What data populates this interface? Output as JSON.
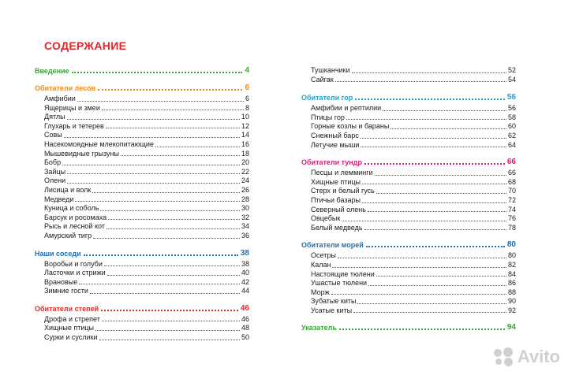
{
  "title": "СОДЕРЖАНИЕ",
  "colors": {
    "title": "#e0272c",
    "green": "#3aa635",
    "orange": "#f18a12",
    "blue": "#1a6fb5",
    "red": "#e52a24",
    "teal": "#1fa3c8",
    "magenta": "#d61f77"
  },
  "left": [
    {
      "label": "Введение",
      "page": "4",
      "color": "#3aa635",
      "items": []
    },
    {
      "label": "Обитатели лесов",
      "page": "6",
      "color": "#f18a12",
      "items": [
        {
          "label": "Амфибии",
          "page": "6"
        },
        {
          "label": "Ящерицы и змеи",
          "page": "8"
        },
        {
          "label": "Дятлы",
          "page": "10"
        },
        {
          "label": "Глухарь и тетерев",
          "page": "12"
        },
        {
          "label": "Совы",
          "page": "14"
        },
        {
          "label": "Насекомоядные млекопитающие",
          "page": "16"
        },
        {
          "label": "Мышевидные грызуны",
          "page": "18"
        },
        {
          "label": "Бобр",
          "page": "20"
        },
        {
          "label": "Зайцы",
          "page": "22"
        },
        {
          "label": "Олени",
          "page": "24"
        },
        {
          "label": "Лисица и волк",
          "page": "26"
        },
        {
          "label": "Медведи",
          "page": "28"
        },
        {
          "label": "Куница и соболь",
          "page": "30"
        },
        {
          "label": "Барсук и росомаха",
          "page": "32"
        },
        {
          "label": "Рысь и лесной кот",
          "page": "34"
        },
        {
          "label": "Амурский тигр",
          "page": "36"
        }
      ]
    },
    {
      "label": "Наши соседи",
      "page": "38",
      "color": "#1a6fb5",
      "items": [
        {
          "label": "Воробьи и голуби",
          "page": "38"
        },
        {
          "label": "Ласточки и стрижи",
          "page": "40"
        },
        {
          "label": "Врановые",
          "page": "42"
        },
        {
          "label": "Зимние гости",
          "page": "44"
        }
      ]
    },
    {
      "label": "Обитатели степей",
      "page": "46",
      "color": "#e52a24",
      "items": [
        {
          "label": "Дрофа и стрепет",
          "page": "46"
        },
        {
          "label": "Хищные птицы",
          "page": "48"
        },
        {
          "label": "Сурки и суслики",
          "page": "50"
        }
      ]
    }
  ],
  "right_continuation": [
    {
      "label": "Тушканчики",
      "page": "52"
    },
    {
      "label": "Сайгак",
      "page": "54"
    }
  ],
  "right": [
    {
      "label": "Обитатели гор",
      "page": "56",
      "color": "#1fa3c8",
      "items": [
        {
          "label": "Амфибии и рептилии",
          "page": "56"
        },
        {
          "label": "Птицы гор",
          "page": "58"
        },
        {
          "label": "Горные козлы и бараны",
          "page": "60"
        },
        {
          "label": "Снежный барс",
          "page": "62"
        },
        {
          "label": "Летучие мыши",
          "page": "64"
        }
      ]
    },
    {
      "label": "Обитатели тундр",
      "page": "66",
      "color": "#d61f77",
      "items": [
        {
          "label": "Песцы и лемминги",
          "page": "66"
        },
        {
          "label": "Хищные птицы",
          "page": "68"
        },
        {
          "label": "Стерх и белый гусь",
          "page": "70"
        },
        {
          "label": "Птичьи базары",
          "page": "72"
        },
        {
          "label": "Северный олень",
          "page": "74"
        },
        {
          "label": "Овцебык",
          "page": "76"
        },
        {
          "label": "Белый медведь",
          "page": "78"
        }
      ]
    },
    {
      "label": "Обитатели морей",
      "page": "80",
      "color": "#1a6fb5",
      "items": [
        {
          "label": "Осетры",
          "page": "80"
        },
        {
          "label": "Калан",
          "page": "82"
        },
        {
          "label": "Настоящие тюлени",
          "page": "84"
        },
        {
          "label": "Ушастые тюлени",
          "page": "86"
        },
        {
          "label": "Морж",
          "page": "88"
        },
        {
          "label": "Зубатые киты",
          "page": "90"
        },
        {
          "label": "Усатые киты",
          "page": "92"
        }
      ]
    },
    {
      "label": "Указатель",
      "page": "94",
      "color": "#3aa635",
      "items": []
    }
  ],
  "watermark": "Avito"
}
